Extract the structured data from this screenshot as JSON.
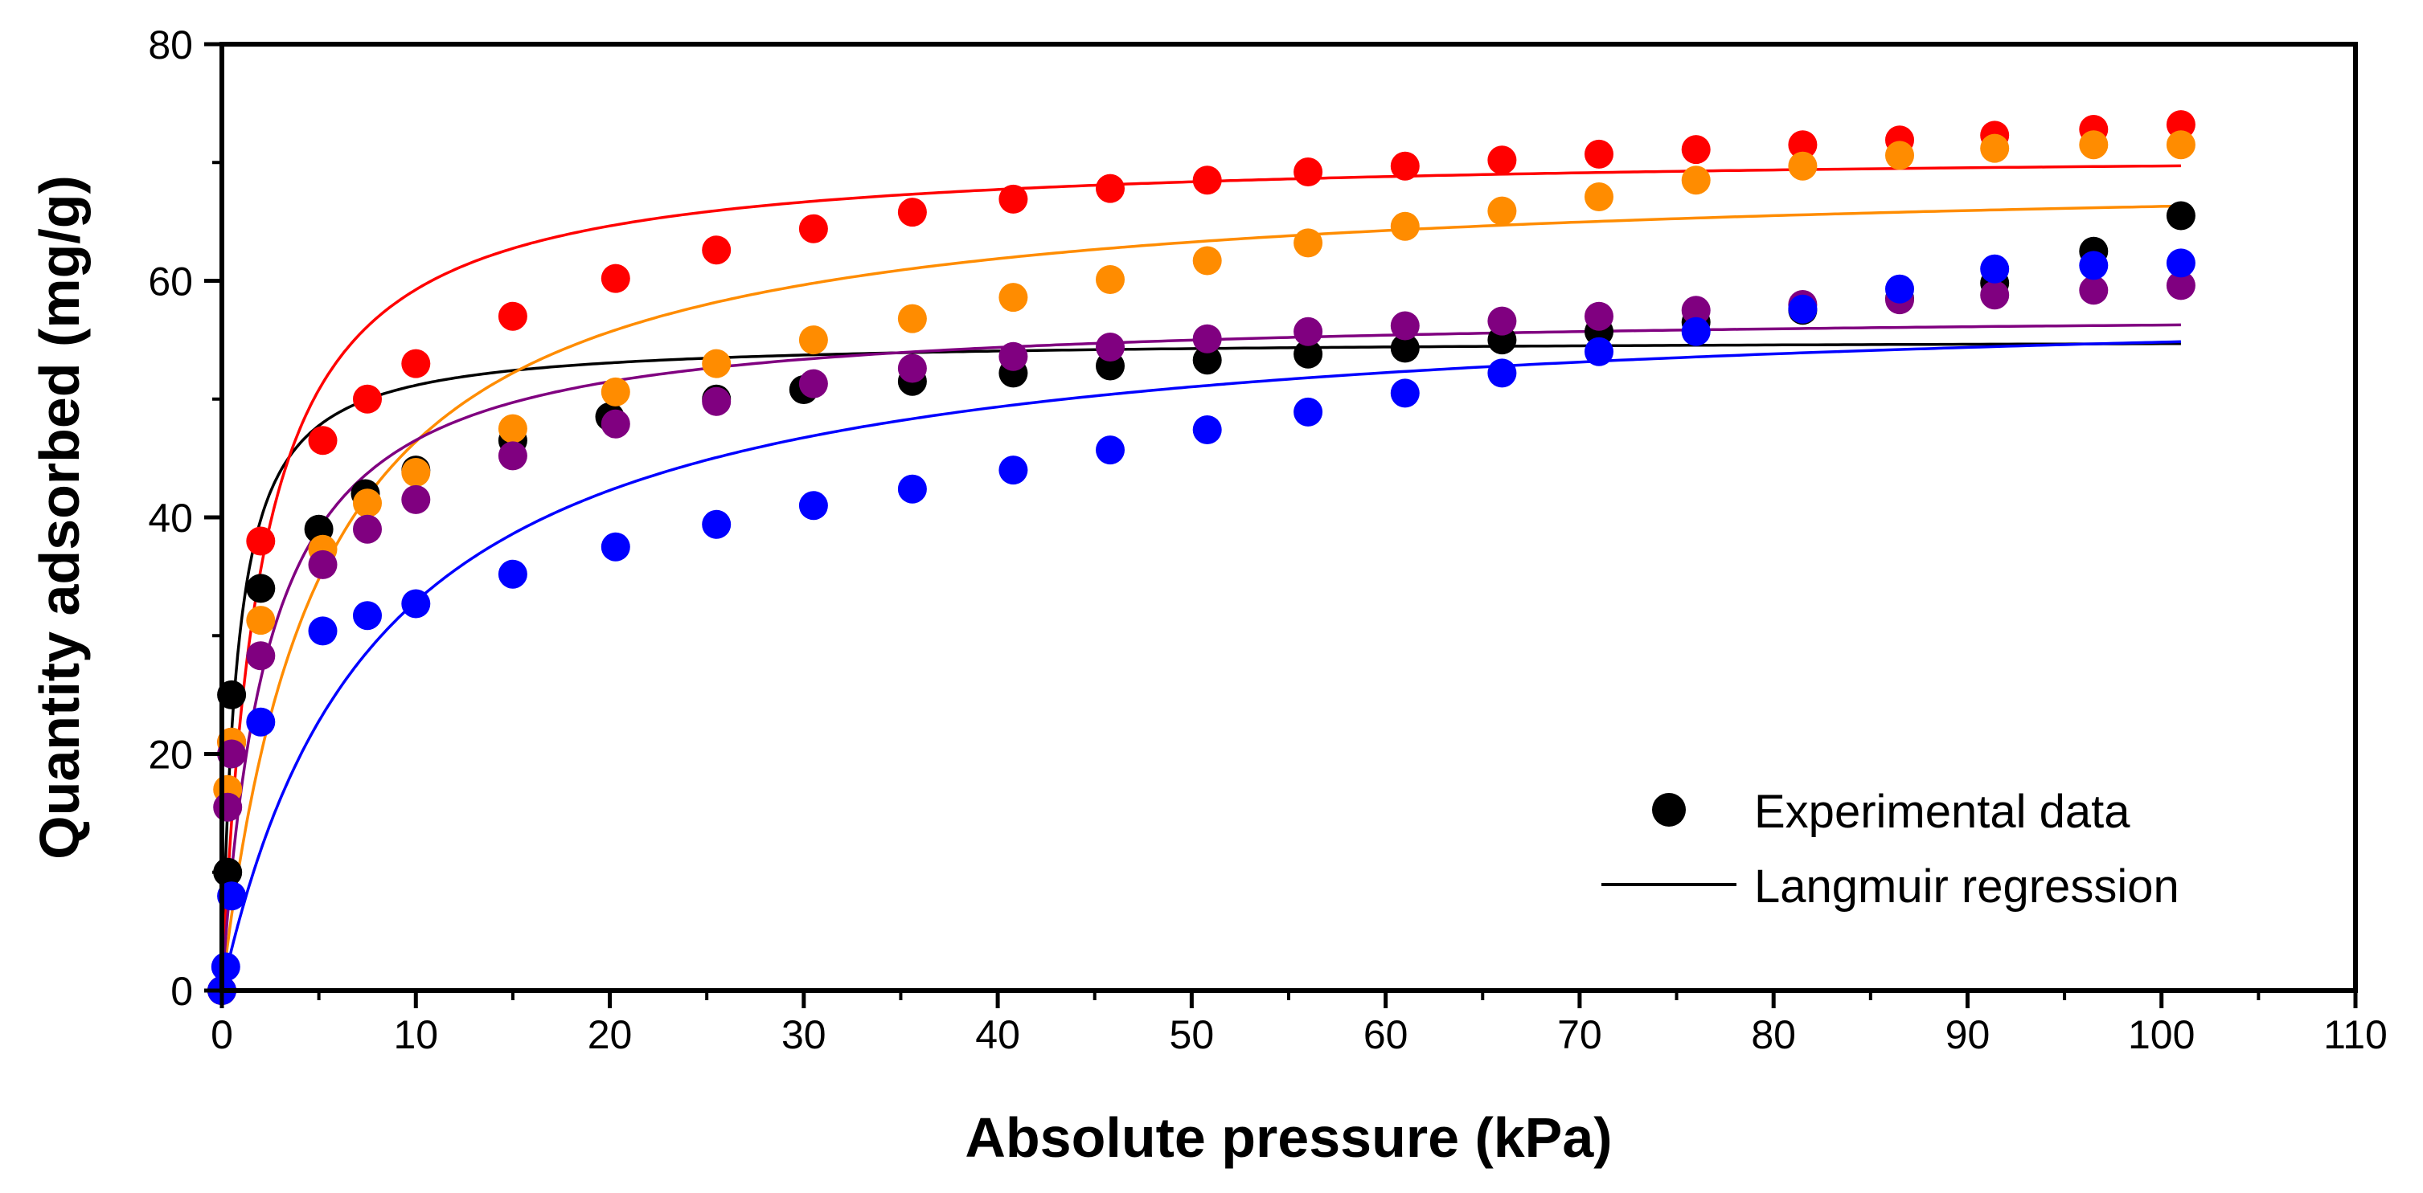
{
  "chart_data": {
    "type": "scatter",
    "title": "",
    "xlabel": "Absolute pressure (kPa)",
    "ylabel": "Quantity adsorbed (mg/g)",
    "xlim": [
      0,
      110
    ],
    "ylim": [
      0,
      80
    ],
    "xticks": [
      0,
      10,
      20,
      30,
      40,
      50,
      60,
      70,
      80,
      90,
      100,
      110
    ],
    "yticks": [
      0,
      20,
      40,
      60,
      80
    ],
    "grid": false,
    "legend": {
      "position": "bottom-right",
      "entries": [
        {
          "label": "Experimental data",
          "kind": "marker",
          "color": "#000000"
        },
        {
          "label": "Langmuir regression",
          "kind": "line",
          "color": "#000000"
        }
      ]
    },
    "series": [
      {
        "name": "black",
        "color": "#000000",
        "points": [
          [
            0,
            0
          ],
          [
            0.3,
            10
          ],
          [
            0.5,
            25
          ],
          [
            2,
            34
          ],
          [
            5,
            39
          ],
          [
            7.4,
            42
          ],
          [
            10,
            44
          ],
          [
            15,
            46.5
          ],
          [
            20,
            48.5
          ],
          [
            25.5,
            50
          ],
          [
            30,
            50.8
          ],
          [
            35.6,
            51.5
          ],
          [
            40.8,
            52.2
          ],
          [
            45.8,
            52.8
          ],
          [
            50.8,
            53.3
          ],
          [
            56,
            53.8
          ],
          [
            61,
            54.3
          ],
          [
            66,
            55
          ],
          [
            71,
            55.7
          ],
          [
            76,
            56.5
          ],
          [
            81.5,
            57.5
          ],
          [
            86.5,
            58.5
          ],
          [
            91.4,
            59.8
          ],
          [
            96.5,
            62.5
          ],
          [
            101,
            65.5
          ]
        ],
        "fit": {
          "model": "langmuir",
          "qmax": 55.1,
          "K": 1.3
        }
      },
      {
        "name": "red",
        "color": "#ff0000",
        "points": [
          [
            0,
            0
          ],
          [
            0.5,
            21
          ],
          [
            2,
            38
          ],
          [
            5.2,
            46.5
          ],
          [
            7.5,
            50
          ],
          [
            10,
            53
          ],
          [
            15,
            57
          ],
          [
            20.3,
            60.2
          ],
          [
            25.5,
            62.6
          ],
          [
            30.5,
            64.4
          ],
          [
            35.6,
            65.8
          ],
          [
            40.8,
            66.9
          ],
          [
            45.8,
            67.8
          ],
          [
            50.8,
            68.5
          ],
          [
            56,
            69.2
          ],
          [
            61,
            69.7
          ],
          [
            66,
            70.2
          ],
          [
            71,
            70.7
          ],
          [
            76,
            71.1
          ],
          [
            81.5,
            71.5
          ],
          [
            86.5,
            71.9
          ],
          [
            91.4,
            72.3
          ],
          [
            96.5,
            72.8
          ],
          [
            101,
            73.2
          ]
        ],
        "fit": {
          "model": "langmuir",
          "qmax": 71.1,
          "K": 0.5
        }
      },
      {
        "name": "orange",
        "color": "#ff8c00",
        "points": [
          [
            0,
            0
          ],
          [
            0.3,
            17
          ],
          [
            0.5,
            21
          ],
          [
            2,
            31.3
          ],
          [
            5.2,
            37.3
          ],
          [
            7.5,
            41.2
          ],
          [
            10,
            43.8
          ],
          [
            15,
            47.5
          ],
          [
            20.3,
            50.6
          ],
          [
            25.5,
            53
          ],
          [
            30.5,
            55
          ],
          [
            35.6,
            56.8
          ],
          [
            40.8,
            58.6
          ],
          [
            45.8,
            60.1
          ],
          [
            50.8,
            61.7
          ],
          [
            56,
            63.2
          ],
          [
            61,
            64.6
          ],
          [
            66,
            65.9
          ],
          [
            71,
            67.1
          ],
          [
            76,
            68.5
          ],
          [
            81.5,
            69.7
          ],
          [
            86.5,
            70.6
          ],
          [
            91.4,
            71.2
          ],
          [
            96.5,
            71.5
          ],
          [
            101,
            71.5
          ]
        ],
        "fit": {
          "model": "langmuir",
          "qmax": 69.6,
          "K": 0.2
        }
      },
      {
        "name": "purple",
        "color": "#800080",
        "points": [
          [
            0,
            0
          ],
          [
            0.3,
            15.5
          ],
          [
            0.5,
            20
          ],
          [
            2,
            28.3
          ],
          [
            5.2,
            36
          ],
          [
            7.5,
            39
          ],
          [
            10,
            41.5
          ],
          [
            15,
            45.2
          ],
          [
            20.3,
            47.9
          ],
          [
            25.5,
            49.8
          ],
          [
            30.5,
            51.3
          ],
          [
            35.6,
            52.6
          ],
          [
            40.8,
            53.6
          ],
          [
            45.8,
            54.4
          ],
          [
            50.8,
            55.1
          ],
          [
            56,
            55.7
          ],
          [
            61,
            56.2
          ],
          [
            66,
            56.6
          ],
          [
            71,
            57
          ],
          [
            76,
            57.5
          ],
          [
            81.5,
            58
          ],
          [
            86.5,
            58.4
          ],
          [
            91.4,
            58.8
          ],
          [
            96.5,
            59.2
          ],
          [
            101,
            59.6
          ]
        ],
        "fit": {
          "model": "langmuir",
          "qmax": 57.6,
          "K": 0.42
        }
      },
      {
        "name": "blue",
        "color": "#0000ff",
        "points": [
          [
            0,
            0
          ],
          [
            0.2,
            2
          ],
          [
            0.5,
            8
          ],
          [
            2,
            22.7
          ],
          [
            5.2,
            30.4
          ],
          [
            7.5,
            31.7
          ],
          [
            10,
            32.7
          ],
          [
            15,
            35.2
          ],
          [
            20.3,
            37.5
          ],
          [
            25.5,
            39.4
          ],
          [
            30.5,
            41
          ],
          [
            35.6,
            42.4
          ],
          [
            40.8,
            44
          ],
          [
            45.8,
            45.7
          ],
          [
            50.8,
            47.4
          ],
          [
            56,
            48.9
          ],
          [
            61,
            50.5
          ],
          [
            66,
            52.2
          ],
          [
            71,
            54
          ],
          [
            76,
            55.7
          ],
          [
            81.5,
            57.6
          ],
          [
            86.5,
            59.3
          ],
          [
            91.4,
            61
          ],
          [
            96.5,
            61.3
          ],
          [
            101,
            61.5
          ]
        ],
        "fit": {
          "model": "langmuir",
          "qmax": 59.2,
          "K": 0.125
        }
      }
    ]
  }
}
